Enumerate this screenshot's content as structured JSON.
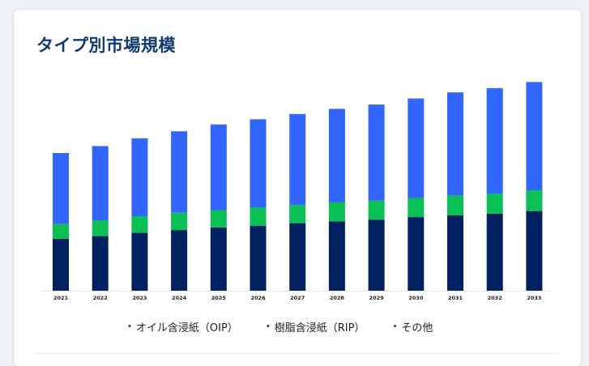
{
  "title": "タイプ別市場規模",
  "chart_data": {
    "type": "bar",
    "stacked": true,
    "categories": [
      "2021",
      "2022",
      "2023",
      "2024",
      "2025",
      "2026",
      "2027",
      "2028",
      "2029",
      "2030",
      "2031",
      "2032",
      "2033"
    ],
    "series": [
      {
        "name": "オイル含浸紙（OIP）",
        "color": "#00205f",
        "values": [
          60,
          63,
          67,
          70,
          73,
          75,
          78,
          80,
          82,
          85,
          87,
          89,
          92
        ]
      },
      {
        "name": "樹脂含浸紙（RIP）",
        "color": "#0abf53",
        "values": [
          17,
          18,
          19,
          20,
          20,
          21,
          21,
          22,
          22,
          22,
          23,
          23,
          24
        ]
      },
      {
        "name": "その他",
        "color": "#3366ff",
        "values": [
          82,
          86,
          90,
          94,
          99,
          102,
          105,
          108,
          111,
          115,
          119,
          122,
          125
        ]
      }
    ],
    "ylim": [
      0,
      245
    ],
    "grid": false,
    "legend": "bottom"
  },
  "legend_items": [
    {
      "label": "オイル含浸紙（OIP）"
    },
    {
      "label": "樹脂含浸紙（RIP）"
    },
    {
      "label": "その他"
    }
  ]
}
